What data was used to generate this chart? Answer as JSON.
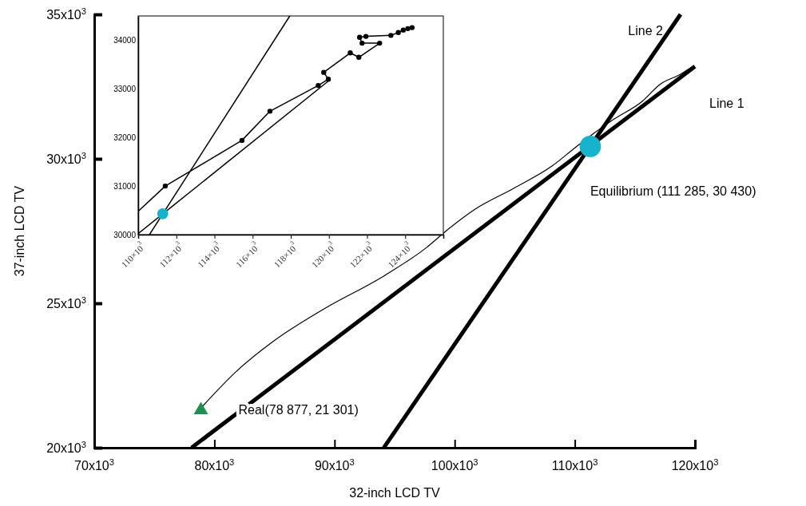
{
  "chart_data": [
    {
      "type": "line",
      "xlabel": "32-inch LCD TV",
      "ylabel": "37-inch LCD TV",
      "xlim": [
        70000,
        120000
      ],
      "ylim": [
        20000,
        35000
      ],
      "xticks": [
        {
          "value": 70000,
          "label": "70x10$^{3}$"
        },
        {
          "value": 80000,
          "label": "80x10$^{3}$"
        },
        {
          "value": 90000,
          "label": "90x10$^{3}$"
        },
        {
          "value": 100000,
          "label": "100x10$^{3}$"
        },
        {
          "value": 110000,
          "label": "110x10$^{3}$"
        },
        {
          "value": 120000,
          "label": "120x10$^{3}$"
        }
      ],
      "yticks": [
        {
          "value": 20000,
          "label": "20x10$^{3}$"
        },
        {
          "value": 25000,
          "label": "25x10$^{3}$"
        },
        {
          "value": 30000,
          "label": "30x10$^{3}$"
        },
        {
          "value": 35000,
          "label": "35x10$^{3}$"
        }
      ],
      "grid": false,
      "legend": false,
      "series": [
        {
          "name": "Line 1",
          "type": "line",
          "color": "#000000",
          "x": [
            78100,
            120000
          ],
          "values": [
            20000,
            33200
          ]
        },
        {
          "name": "Line 2",
          "type": "line",
          "color": "#000000",
          "x": [
            94100,
            118800
          ],
          "values": [
            20000,
            35000
          ]
        },
        {
          "type": "line",
          "color": "#000000",
          "x": [
            79050,
            81770,
            84960,
            89020,
            94200,
            97660,
            99390,
            101710,
            104910,
            108100,
            110090,
            111560,
            113280,
            115610,
            117070,
            118800,
            119930
          ],
          "values": [
            21450,
            22620,
            23700,
            24780,
            25970,
            26930,
            27540,
            28260,
            28980,
            29750,
            30410,
            30880,
            31380,
            31990,
            32570,
            32930,
            33230
          ]
        },
        {
          "type": "scatter",
          "marker": "circle",
          "color": "#17b3cc",
          "x": [
            111285
          ],
          "values": [
            30430
          ]
        },
        {
          "type": "scatter",
          "marker": "triangle",
          "color": "#1e8f4e",
          "x": [
            78877
          ],
          "values": [
            21301
          ]
        }
      ],
      "annotations": [
        {
          "text": "Equilibrium (111 285, 30 430)",
          "x": 111285,
          "y": 30430
        },
        {
          "text": "Real(78 877, 21 301)",
          "x": 78877,
          "y": 21301
        }
      ]
    },
    {
      "type": "line",
      "xlim": [
        110000,
        126000
      ],
      "ylim": [
        30000,
        34500
      ],
      "xticks": [
        {
          "value": 110000,
          "label": "110×10$^{3}$"
        },
        {
          "value": 112000,
          "label": "112×10$^{3}$"
        },
        {
          "value": 114000,
          "label": "114×10$^{3}$"
        },
        {
          "value": 116000,
          "label": "116×10$^{3}$"
        },
        {
          "value": 118000,
          "label": "118×10$^{3}$"
        },
        {
          "value": 120000,
          "label": "120×10$^{3}$"
        },
        {
          "value": 122000,
          "label": "122×10$^{3}$"
        },
        {
          "value": 124000,
          "label": "124×10$^{3}$"
        }
      ],
      "yticks": [
        30000,
        31000,
        32000,
        33000,
        34000
      ],
      "grid": false,
      "legend": false,
      "series": [
        {
          "type": "line",
          "color": "#000000",
          "x": [
            110000,
            120000
          ],
          "values": [
            30020,
            33170
          ]
        },
        {
          "type": "line",
          "color": "#000000",
          "x": [
            110590,
            117950
          ],
          "values": [
            30000,
            34500
          ]
        },
        {
          "type": "line",
          "color": "#000000",
          "x": [
            110000,
            111420
          ],
          "values": [
            30480,
            31000
          ]
        },
        {
          "type": "line",
          "marker": "circle",
          "color": "#000000",
          "x": [
            111420,
            115440,
            116910,
            119440,
            119970,
            119730,
            121120,
            121570,
            122660,
            121740,
            121610,
            121940,
            123250,
            123640,
            123900,
            124140,
            124360
          ],
          "values": [
            31000,
            31940,
            32540,
            33070,
            33200,
            33340,
            33740,
            33650,
            33940,
            33940,
            34060,
            34080,
            34100,
            34160,
            34210,
            34240,
            34260
          ]
        },
        {
          "type": "scatter",
          "marker": "circle",
          "color": "#17b3cc",
          "x": [
            111285
          ],
          "values": [
            30430
          ]
        }
      ]
    }
  ]
}
